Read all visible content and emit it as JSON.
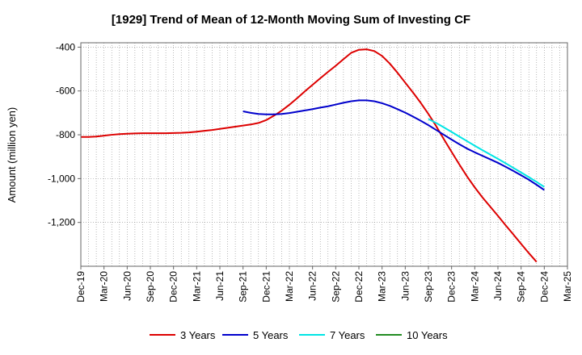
{
  "chart_data": {
    "type": "line",
    "title": "[1929]  Trend of Mean of 12-Month Moving Sum of Investing CF",
    "xlabel": "",
    "ylabel": "Amount (million yen)",
    "ylim": [
      -1400,
      -380
    ],
    "yticks": [
      -400,
      -600,
      -800,
      -1000,
      -1200
    ],
    "ytick_labels": [
      "-400",
      "-600",
      "-800",
      "-1,000",
      "-1,200"
    ],
    "grid": true,
    "legend_position": "bottom",
    "x_start": "Dec-19",
    "x_end": "Mar-25",
    "x_tick_labels": [
      "Dec-19",
      "Mar-20",
      "Jun-20",
      "Sep-20",
      "Dec-20",
      "Mar-21",
      "Jun-21",
      "Sep-21",
      "Dec-21",
      "Mar-22",
      "Jun-22",
      "Sep-22",
      "Dec-22",
      "Mar-23",
      "Jun-23",
      "Sep-23",
      "Dec-23",
      "Mar-24",
      "Jun-24",
      "Sep-24",
      "Dec-24",
      "Mar-25"
    ],
    "series": [
      {
        "name": "3 Years",
        "color": "#dd0000",
        "points": [
          [
            0,
            -810
          ],
          [
            1,
            -810
          ],
          [
            2,
            -808
          ],
          [
            3,
            -804
          ],
          [
            4,
            -800
          ],
          [
            5,
            -797
          ],
          [
            6,
            -795
          ],
          [
            7,
            -794
          ],
          [
            8,
            -793
          ],
          [
            9,
            -793
          ],
          [
            10,
            -793
          ],
          [
            11,
            -793
          ],
          [
            12,
            -792
          ],
          [
            13,
            -791
          ],
          [
            14,
            -789
          ],
          [
            15,
            -786
          ],
          [
            16,
            -782
          ],
          [
            17,
            -778
          ],
          [
            18,
            -773
          ],
          [
            19,
            -768
          ],
          [
            20,
            -763
          ],
          [
            21,
            -758
          ],
          [
            22,
            -753
          ],
          [
            23,
            -746
          ],
          [
            24,
            -733
          ],
          [
            25,
            -713
          ],
          [
            26,
            -690
          ],
          [
            27,
            -663
          ],
          [
            28,
            -633
          ],
          [
            29,
            -602
          ],
          [
            30,
            -572
          ],
          [
            31,
            -542
          ],
          [
            32,
            -513
          ],
          [
            33,
            -485
          ],
          [
            34,
            -455
          ],
          [
            35,
            -426
          ],
          [
            36,
            -412
          ],
          [
            37,
            -410
          ],
          [
            38,
            -418
          ],
          [
            39,
            -440
          ],
          [
            40,
            -475
          ],
          [
            41,
            -517
          ],
          [
            42,
            -562
          ],
          [
            43,
            -607
          ],
          [
            44,
            -654
          ],
          [
            45,
            -705
          ],
          [
            46,
            -760
          ],
          [
            47,
            -820
          ],
          [
            48,
            -878
          ],
          [
            49,
            -935
          ],
          [
            50,
            -990
          ],
          [
            51,
            -1040
          ],
          [
            52,
            -1086
          ],
          [
            53,
            -1128
          ],
          [
            54,
            -1170
          ],
          [
            55,
            -1213
          ],
          [
            56,
            -1255
          ],
          [
            57,
            -1298
          ],
          [
            58,
            -1340
          ],
          [
            59,
            -1380
          ]
        ]
      },
      {
        "name": "5 Years",
        "color": "#0000cc",
        "points": [
          [
            21,
            -693
          ],
          [
            22,
            -700
          ],
          [
            23,
            -705
          ],
          [
            24,
            -707
          ],
          [
            25,
            -707
          ],
          [
            26,
            -705
          ],
          [
            27,
            -701
          ],
          [
            28,
            -695
          ],
          [
            29,
            -689
          ],
          [
            30,
            -683
          ],
          [
            31,
            -676
          ],
          [
            32,
            -670
          ],
          [
            33,
            -662
          ],
          [
            34,
            -654
          ],
          [
            35,
            -647
          ],
          [
            36,
            -643
          ],
          [
            37,
            -643
          ],
          [
            38,
            -647
          ],
          [
            39,
            -656
          ],
          [
            40,
            -668
          ],
          [
            41,
            -683
          ],
          [
            42,
            -699
          ],
          [
            43,
            -717
          ],
          [
            44,
            -736
          ],
          [
            45,
            -756
          ],
          [
            46,
            -778
          ],
          [
            47,
            -800
          ],
          [
            48,
            -822
          ],
          [
            49,
            -843
          ],
          [
            50,
            -863
          ],
          [
            51,
            -880
          ],
          [
            52,
            -896
          ],
          [
            53,
            -912
          ],
          [
            54,
            -928
          ],
          [
            55,
            -946
          ],
          [
            56,
            -965
          ],
          [
            57,
            -985
          ],
          [
            58,
            -1005
          ],
          [
            59,
            -1028
          ],
          [
            60,
            -1052
          ]
        ]
      },
      {
        "name": "7 Years",
        "color": "#00e5e5",
        "points": [
          [
            45,
            -728
          ],
          [
            46,
            -746
          ],
          [
            47,
            -766
          ],
          [
            48,
            -787
          ],
          [
            49,
            -808
          ],
          [
            50,
            -829
          ],
          [
            51,
            -850
          ],
          [
            52,
            -870
          ],
          [
            53,
            -890
          ],
          [
            54,
            -910
          ],
          [
            55,
            -930
          ],
          [
            56,
            -951
          ],
          [
            57,
            -972
          ],
          [
            58,
            -993
          ],
          [
            59,
            -1015
          ],
          [
            60,
            -1038
          ]
        ]
      },
      {
        "name": "10 Years",
        "color": "#228b22",
        "points": []
      }
    ]
  }
}
